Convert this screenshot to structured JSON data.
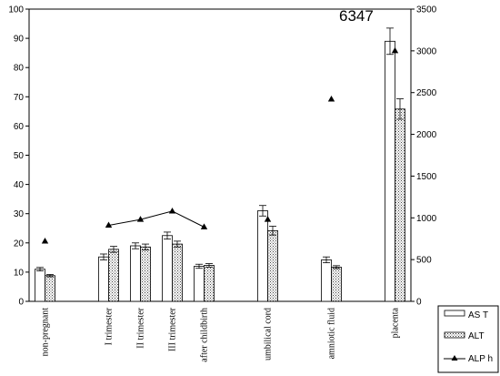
{
  "chart_data": {
    "type": "bar",
    "annotation": "6347",
    "categories": [
      "non-pregnant",
      "I trimester",
      "II trimester",
      "III trimester",
      "after childbirth",
      "umbilical cord",
      "amniotic fluid",
      "placenta"
    ],
    "ylim_left": [
      0,
      100
    ],
    "ylim_right": [
      0,
      3500
    ],
    "yticks_left": [
      "0",
      "10",
      "20",
      "30",
      "40",
      "50",
      "60",
      "70",
      "80",
      "90",
      "100"
    ],
    "yticks_right": [
      "0",
      "500",
      "1000",
      "1500",
      "2000",
      "2500",
      "3000",
      "3500"
    ],
    "grid": false,
    "legend_position": "bottom-right",
    "series": [
      {
        "name": "AS T",
        "axis": "left",
        "fill": "white",
        "values": [
          11,
          15.2,
          19,
          22.5,
          12,
          31,
          14.2,
          89
        ],
        "errors": [
          0.6,
          1.0,
          1.0,
          1.2,
          0.7,
          1.8,
          1.0,
          4.5
        ]
      },
      {
        "name": "ALT",
        "axis": "left",
        "fill": "hatched",
        "values": [
          8.8,
          17.8,
          18.6,
          19.6,
          12.3,
          24.2,
          11.7,
          65.8
        ],
        "errors": [
          0.4,
          1.0,
          1.0,
          1.0,
          0.6,
          1.5,
          0.5,
          3.5
        ]
      },
      {
        "name": "ALP h",
        "axis": "right",
        "type": "line+marker",
        "points": [
          {
            "category": "non-pregnant",
            "value": 720
          },
          {
            "category": "I trimester",
            "value": 910
          },
          {
            "category": "II trimester",
            "value": 980
          },
          {
            "category": "III trimester",
            "value": 1080
          },
          {
            "category": "after childbirth",
            "value": 890
          },
          {
            "category": "umbilical cord",
            "value": 980
          },
          {
            "category": "amniotic fluid",
            "value": 2420
          },
          {
            "category": "placenta",
            "value": 3000
          }
        ],
        "connected": [
          "I trimester",
          "II trimester",
          "III trimester",
          "after childbirth"
        ]
      }
    ]
  }
}
